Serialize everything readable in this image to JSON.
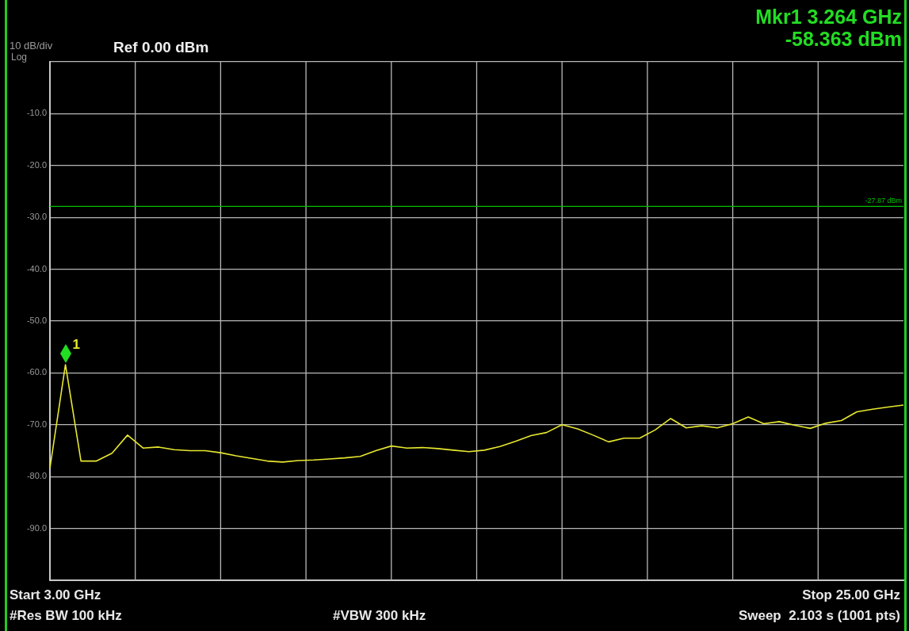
{
  "chart_data": {
    "type": "line",
    "title": "Ref 0.00 dBm",
    "categories": [
      null,
      null,
      null,
      null,
      null,
      null,
      null,
      null,
      null,
      null,
      null,
      null,
      null,
      null,
      null,
      null,
      null,
      null,
      null,
      null,
      null,
      null,
      null,
      null,
      null,
      null,
      null,
      null,
      null,
      null,
      null,
      null,
      null,
      null,
      null,
      null,
      null,
      null,
      null,
      null,
      null,
      null,
      null,
      null,
      null,
      null,
      null,
      null,
      null,
      null,
      null,
      null,
      null,
      null,
      null,
      null
    ],
    "series": [
      {
        "color": "#e8e830",
        "values": [
          -78.4,
          -58.4,
          -77.0,
          -77.0,
          -75.5,
          -72.0,
          -74.5,
          -74.3,
          -74.8,
          -75.0,
          -75.0,
          -75.4,
          -76.0,
          -76.5,
          -77.0,
          -77.2,
          -76.9,
          -76.8,
          -76.6,
          -76.4,
          -76.1,
          -75.0,
          -74.1,
          -74.5,
          -74.4,
          -74.6,
          -74.9,
          -75.2,
          -74.9,
          -74.2,
          -73.2,
          -72.1,
          -71.5,
          -70.0,
          -70.8,
          -72.0,
          -73.3,
          -72.6,
          -72.6,
          -71.0,
          -68.8,
          -70.6,
          -70.2,
          -70.6,
          -69.8,
          -68.5,
          -69.8,
          -69.4,
          -70.1,
          -70.7,
          -69.7,
          -69.2,
          -67.5,
          -67.0,
          -66.6,
          -66.2
        ]
      }
    ],
    "ylim": [
      -100,
      0
    ],
    "yticks": [
      {
        "value": -100,
        "label": null
      },
      {
        "value": -90,
        "label": "-90.0"
      },
      {
        "value": -80,
        "label": "-80.0"
      },
      {
        "value": -70,
        "label": "-70.0"
      },
      {
        "value": -60,
        "label": "-60.0"
      },
      {
        "value": -50,
        "label": "-50.0"
      },
      {
        "value": -40,
        "label": "-40.0"
      },
      {
        "value": -30,
        "label": "-30.0"
      },
      {
        "value": -20,
        "label": "-20.0"
      },
      {
        "value": -10,
        "label": "-10.0"
      },
      {
        "value": 0,
        "label": null
      }
    ],
    "tick_labels": "y",
    "grid": true,
    "marker": "none",
    "line_style": "solid",
    "ref_lines": [
      {
        "axis": "y",
        "value": -27.9,
        "label": "-27.87 dBm",
        "color": "#00c000"
      }
    ],
    "annotations": [
      "10 dB/div",
      "Log",
      "Mkr1 3.264 GHz",
      "-58.363 dBm",
      "Start 3.00 GHz",
      "Stop 25.00 GHz",
      "#Res BW 100 kHz",
      "#VBW 300 kHz",
      "Sweep  2.103 s (1001 pts)",
      "1"
    ]
  }
}
